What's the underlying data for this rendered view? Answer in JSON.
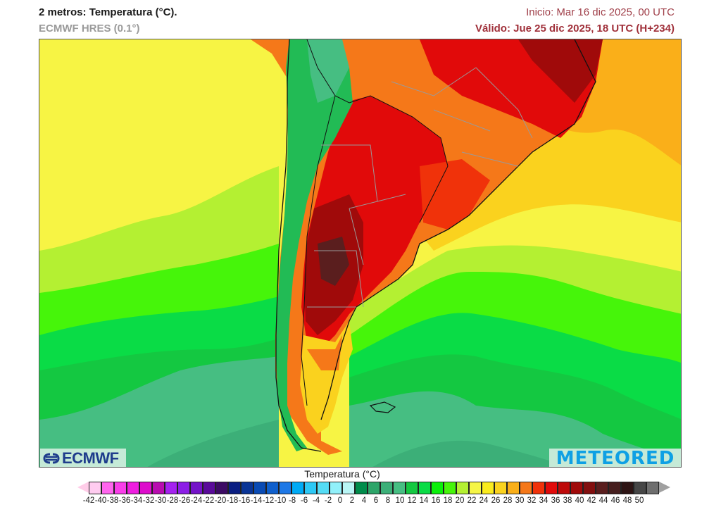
{
  "header": {
    "title": "2 metros: Temperatura (°C).",
    "model": "ECMWF HRES (0.1°)",
    "run": "Inicio: Mar 16 dic 2025, 00 UTC",
    "valid": "Válido: Jue 25 dic 2025, 18 UTC (H+234)"
  },
  "map": {
    "region": "South America (Southern Cone)",
    "variable": "2 m temperature",
    "units": "°C",
    "colors": {
      "ocean_north": "#f7f444",
      "ocean_mid": "#b2f030",
      "ocean_south": "#46bf7a",
      "land_hot": "#e30d0d",
      "land_extreme": "#7a1010",
      "andes": "#22bb55",
      "borders_country": "#111111",
      "borders_state": "#9a9a9a"
    }
  },
  "logos": {
    "left": "ECMWF",
    "right": "METEORED"
  },
  "colorbar": {
    "title": "Temperatura (°C)",
    "labels": [
      "-42",
      "-40",
      "-38",
      "-36",
      "-34",
      "-32",
      "-30",
      "-28",
      "-26",
      "-24",
      "-22",
      "-20",
      "-18",
      "-16",
      "-14",
      "-12",
      "-10",
      "-8",
      "-6",
      "-4",
      "-2",
      "0",
      "2",
      "4",
      "6",
      "8",
      "10",
      "12",
      "14",
      "16",
      "18",
      "20",
      "22",
      "24",
      "26",
      "28",
      "30",
      "32",
      "34",
      "36",
      "38",
      "40",
      "42",
      "44",
      "46",
      "48",
      "50"
    ],
    "low_arrow_color": "#ffcce8",
    "high_arrow_color": "#a0a0a0",
    "colors": [
      "#ffccf0",
      "#ff66ee",
      "#f93ee9",
      "#ee1ee0",
      "#dd0ccc",
      "#b80cb0",
      "#a522f0",
      "#8c1ee6",
      "#7413c8",
      "#5a0a9a",
      "#3c0a64",
      "#0a1e82",
      "#0a3596",
      "#0a4bb4",
      "#0f5fcc",
      "#1e78e6",
      "#00aaf5",
      "#2dc8f5",
      "#55dcf5",
      "#91f0fa",
      "#b9f5f5",
      "#008c4b",
      "#2da569",
      "#3caf78",
      "#46be82",
      "#14c841",
      "#0adc46",
      "#0af00a",
      "#46f50a",
      "#b4f032",
      "#f5f546",
      "#faeb1e",
      "#fad21e",
      "#faaf19",
      "#f57819",
      "#f0320a",
      "#e10a0a",
      "#be0a0a",
      "#a00a0a",
      "#820f0f",
      "#5a1e1e",
      "#461e1e",
      "#2d1414",
      "#464646",
      "#6e6e6e"
    ]
  },
  "chart_data": {
    "type": "heatmap",
    "title": "2 metros: Temperatura (°C).",
    "subtitle": "ECMWF HRES (0.1°)",
    "init": "Mar 16 dic 2025, 00 UTC",
    "valid": "Jue 25 dic 2025, 18 UTC (H+234)",
    "colorbar_label": "Temperatura (°C)",
    "colorbar_range": [
      -42,
      50
    ],
    "colorbar_step": 2,
    "observations": {
      "central_argentina_max": "40-44",
      "northern_argentina_paraguay": "32-38",
      "southeast_brazil": "30-38",
      "andes": "8-20",
      "pacific_ocean_north": "20-22",
      "atlantic_ocean_north": "24-28",
      "southern_oceans": "6-12",
      "patagonia": "18-30"
    }
  }
}
